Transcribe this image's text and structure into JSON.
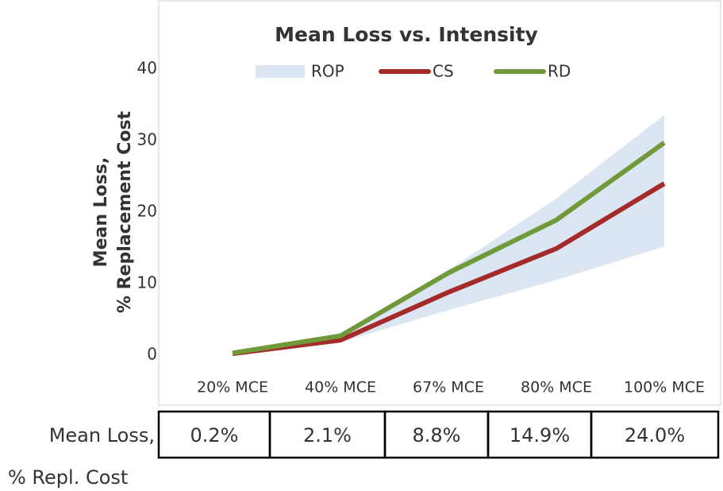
{
  "chart_data": {
    "type": "line",
    "title": "Mean Loss vs. Intensity",
    "ylabel": [
      "Mean Loss,",
      "% Replacement Cost"
    ],
    "categories": [
      "20% MCE",
      "40% MCE",
      "67% MCE",
      "80% MCE",
      "100% MCE"
    ],
    "ylim": [
      0,
      40
    ],
    "yticks": [
      0,
      10,
      20,
      30,
      40
    ],
    "grid": false,
    "series": [
      {
        "name": "ROP",
        "color": "#dce6f2",
        "low": [
          0.2,
          1.8,
          6.3,
          10.5,
          15.2
        ],
        "high": [
          0.2,
          2.8,
          11.9,
          21.9,
          33.6
        ]
      },
      {
        "name": "CS",
        "color": "#a52a2a",
        "values": [
          0.2,
          2.1,
          8.8,
          14.9,
          24.0
        ],
        "value_labels": [
          "0.2%",
          "2.1%",
          "8.8%",
          "14.9%",
          "24.0%"
        ]
      },
      {
        "name": "RD",
        "color": "#70993a",
        "values": [
          0.3,
          2.7,
          11.5,
          18.9,
          29.7
        ]
      }
    ],
    "table_label": [
      "Mean Loss,",
      "% Repl. Cost"
    ]
  }
}
